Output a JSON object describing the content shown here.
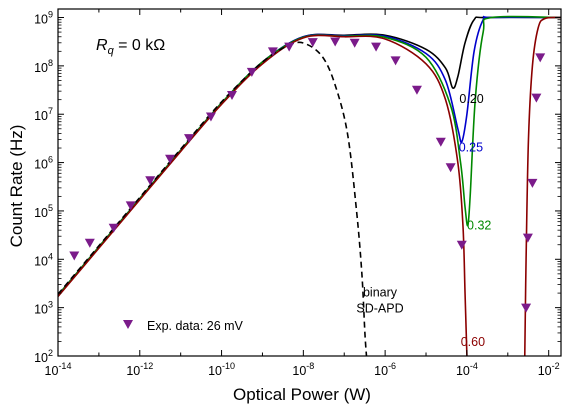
{
  "chart_data": {
    "type": "line",
    "xlabel": "Optical Power (W)",
    "ylabel": "Count Rate (Hz)",
    "x_scale": "log",
    "y_scale": "log",
    "xlim": [
      1e-14,
      0.02
    ],
    "ylim": [
      100.0,
      1500000000.0
    ],
    "grid": false,
    "annotation_rq": {
      "symbol": "R",
      "subscript": "q",
      "rest": " = 0 kΩ"
    },
    "x_ticks": [
      {
        "value": 1e-14,
        "base": "10",
        "exp": "-14"
      },
      {
        "value": 1e-12,
        "base": "10",
        "exp": "-12"
      },
      {
        "value": 1e-10,
        "base": "10",
        "exp": "-10"
      },
      {
        "value": 1e-08,
        "base": "10",
        "exp": "-8"
      },
      {
        "value": 1e-06,
        "base": "10",
        "exp": "-6"
      },
      {
        "value": 0.0001,
        "base": "10",
        "exp": "-4"
      },
      {
        "value": 0.01,
        "base": "10",
        "exp": "-2"
      }
    ],
    "y_ticks": [
      {
        "value": 100.0,
        "base": "10",
        "exp": "2"
      },
      {
        "value": 1000.0,
        "base": "10",
        "exp": "3"
      },
      {
        "value": 10000.0,
        "base": "10",
        "exp": "4"
      },
      {
        "value": 100000.0,
        "base": "10",
        "exp": "5"
      },
      {
        "value": 1000000.0,
        "base": "10",
        "exp": "6"
      },
      {
        "value": 10000000.0,
        "base": "10",
        "exp": "7"
      },
      {
        "value": 100000000.0,
        "base": "10",
        "exp": "8"
      },
      {
        "value": 1000000000.0,
        "base": "10",
        "exp": "9"
      }
    ],
    "series": [
      {
        "label": "0.20",
        "color": "#000000",
        "style": "solid",
        "label_point": [
          0.00013,
          17000000.0
        ],
        "points": [
          [
            1e-14,
            1800.0
          ],
          [
            1e-13,
            18000.0
          ],
          [
            1e-12,
            180000.0
          ],
          [
            1e-11,
            1800000.0
          ],
          [
            1e-10,
            17000000.0
          ],
          [
            1e-09,
            120000000.0
          ],
          [
            1e-08,
            400000000.0
          ],
          [
            1e-07,
            430000000.0
          ],
          [
            1e-06,
            430000000.0
          ],
          [
            1e-05,
            220000000.0
          ],
          [
            3e-05,
            90000000.0
          ],
          [
            4.5e-05,
            35000000.0
          ],
          [
            6e-05,
            60000000.0
          ],
          [
            9e-05,
            300000000.0
          ],
          [
            0.00015,
            900000000.0
          ],
          [
            0.0003,
            1000000000.0
          ],
          [
            0.02,
            1000000000.0
          ]
        ]
      },
      {
        "label": "0.25",
        "color": "#0000cc",
        "style": "solid",
        "label_point": [
          0.000125,
          1700000.0
        ],
        "points": [
          [
            1e-14,
            1800.0
          ],
          [
            1e-13,
            18000.0
          ],
          [
            1e-12,
            180000.0
          ],
          [
            1e-11,
            1800000.0
          ],
          [
            1e-10,
            17000000.0
          ],
          [
            1e-09,
            120000000.0
          ],
          [
            1e-08,
            400000000.0
          ],
          [
            1e-07,
            420000000.0
          ],
          [
            1e-06,
            410000000.0
          ],
          [
            1e-05,
            180000000.0
          ],
          [
            3e-05,
            50000000.0
          ],
          [
            6e-05,
            5000000.0
          ],
          [
            7.5e-05,
            2700000.0
          ],
          [
            0.0001,
            10000000.0
          ],
          [
            0.00015,
            200000000.0
          ],
          [
            0.00025,
            900000000.0
          ],
          [
            0.0004,
            1000000000.0
          ],
          [
            0.02,
            1000000000.0
          ]
        ]
      },
      {
        "label": "0.32",
        "color": "#008800",
        "style": "solid",
        "label_point": [
          0.0002,
          41000.0
        ],
        "points": [
          [
            1e-14,
            1800.0
          ],
          [
            1e-13,
            18000.0
          ],
          [
            1e-12,
            180000.0
          ],
          [
            1e-11,
            1800000.0
          ],
          [
            1e-10,
            17000000.0
          ],
          [
            1e-09,
            120000000.0
          ],
          [
            1e-08,
            390000000.0
          ],
          [
            1e-07,
            410000000.0
          ],
          [
            1e-06,
            390000000.0
          ],
          [
            1e-05,
            150000000.0
          ],
          [
            4e-05,
            15000000.0
          ],
          [
            7e-05,
            1000000.0
          ],
          [
            9e-05,
            120000.0
          ],
          [
            0.000105,
            50000.0
          ],
          [
            0.00012,
            200000.0
          ],
          [
            0.00016,
            20000000.0
          ],
          [
            0.00025,
            500000000.0
          ],
          [
            0.0004,
            1000000000.0
          ],
          [
            0.02,
            1000000000.0
          ]
        ]
      },
      {
        "label": "0.60",
        "color": "#8b0000",
        "style": "solid",
        "label_point": [
          0.00014,
          160.0
        ],
        "points": [
          [
            1e-14,
            1700.0
          ],
          [
            1e-13,
            17000.0
          ],
          [
            1e-12,
            170000.0
          ],
          [
            1e-11,
            1700000.0
          ],
          [
            1e-10,
            16000000.0
          ],
          [
            1e-09,
            110000000.0
          ],
          [
            1e-08,
            380000000.0
          ],
          [
            1e-07,
            400000000.0
          ],
          [
            1e-06,
            360000000.0
          ],
          [
            1e-05,
            110000000.0
          ],
          [
            3e-05,
            20000000.0
          ],
          [
            6e-05,
            1000000.0
          ],
          [
            8e-05,
            50000.0
          ],
          [
            9e-05,
            2000.0
          ],
          [
            0.0001,
            100.0
          ]
        ],
        "points_b": [
          [
            0.0026,
            100.0
          ],
          [
            0.0028,
            10000.0
          ],
          [
            0.0032,
            3000000.0
          ],
          [
            0.004,
            100000000.0
          ],
          [
            0.0055,
            600000000.0
          ],
          [
            0.008,
            950000000.0
          ],
          [
            0.02,
            1000000000.0
          ]
        ]
      },
      {
        "label": "binary SD-APD",
        "label_lines": [
          "binary",
          "SD-APD"
        ],
        "color": "#000000",
        "style": "dashed",
        "label_point": [
          7.5e-07,
          1700.0
        ],
        "points": [
          [
            1e-14,
            1900.0
          ],
          [
            1e-13,
            19000.0
          ],
          [
            1e-12,
            190000.0
          ],
          [
            1e-11,
            1900000.0
          ],
          [
            1e-10,
            18000000.0
          ],
          [
            1e-09,
            120000000.0
          ],
          [
            5e-09,
            280000000.0
          ],
          [
            1.2e-08,
            280000000.0
          ],
          [
            3e-08,
            150000000.0
          ],
          [
            6e-08,
            40000000.0
          ],
          [
            1.2e-07,
            4000000.0
          ],
          [
            2e-07,
            100000.0
          ],
          [
            2.7e-07,
            5000.0
          ],
          [
            3.2e-07,
            300.0
          ],
          [
            3.5e-07,
            100.0
          ]
        ]
      }
    ],
    "exp_data": {
      "legend_label": "Exp. data: 26 mV",
      "color": "#7b1b8a",
      "marker": "triangle-down",
      "points": [
        [
          2.5e-14,
          12000.0
        ],
        [
          6e-14,
          22000.0
        ],
        [
          2.3e-13,
          45000.0
        ],
        [
          6e-13,
          130000.0
        ],
        [
          1.8e-12,
          430000.0
        ],
        [
          5.5e-12,
          1200000.0
        ],
        [
          1.6e-11,
          3200000.0
        ],
        [
          5.5e-11,
          9000000.0
        ],
        [
          1.8e-10,
          25000000.0
        ],
        [
          5.5e-10,
          75000000.0
        ],
        [
          1.8e-09,
          200000000.0
        ],
        [
          4.5e-09,
          250000000.0
        ],
        [
          1.7e-08,
          310000000.0
        ],
        [
          6e-08,
          320000000.0
        ],
        [
          1.8e-07,
          300000000.0
        ],
        [
          6e-07,
          250000000.0
        ],
        [
          1.8e-06,
          130000000.0
        ],
        [
          6e-06,
          32000000.0
        ],
        [
          2.3e-05,
          2700000.0
        ],
        [
          4e-05,
          800000.0
        ],
        [
          7.5e-05,
          20000.0
        ],
        [
          0.0028,
          1000.0
        ],
        [
          0.0031,
          28000.0
        ],
        [
          0.004,
          380000.0
        ],
        [
          0.005,
          22000000.0
        ],
        [
          0.0062,
          150000000.0
        ]
      ]
    }
  }
}
